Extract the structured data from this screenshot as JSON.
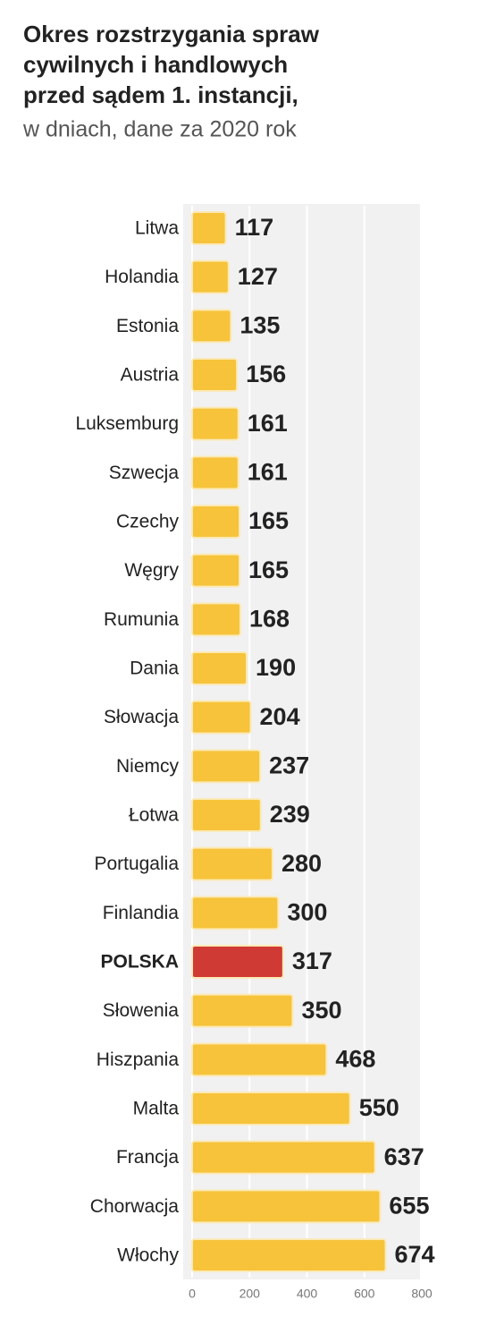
{
  "chart_data": {
    "type": "hbar",
    "title": [
      "Okres rozstrzygania spraw",
      "cywilnych i handlowych",
      "przed sądem 1. instancji,"
    ],
    "subtitle": "w dniach, dane za 2020 rok",
    "categories": [
      "Litwa",
      "Holandia",
      "Estonia",
      "Austria",
      "Luksemburg",
      "Szwecja",
      "Czechy",
      "Węgry",
      "Rumunia",
      "Dania",
      "Słowacja",
      "Niemcy",
      "Łotwa",
      "Portugalia",
      "Finlandia",
      "POLSKA",
      "Słowenia",
      "Hiszpania",
      "Malta",
      "Francja",
      "Chorwacja",
      "Włochy"
    ],
    "values": [
      117,
      127,
      135,
      156,
      161,
      161,
      165,
      165,
      168,
      190,
      204,
      237,
      239,
      280,
      300,
      317,
      350,
      468,
      550,
      637,
      655,
      674
    ],
    "colors": [
      "#f6c33a",
      "#f6c33a",
      "#f6c33a",
      "#f6c33a",
      "#f6c33a",
      "#f6c33a",
      "#f6c33a",
      "#f6c33a",
      "#f6c33a",
      "#f6c33a",
      "#f6c33a",
      "#f6c33a",
      "#f6c33a",
      "#f6c33a",
      "#f6c33a",
      "#d03a35",
      "#f6c33a",
      "#f6c33a",
      "#f6c33a",
      "#f6c33a",
      "#f6c33a",
      "#f6c33a"
    ],
    "xlim": [
      0,
      800
    ],
    "xticks": [
      0,
      200,
      400,
      600,
      800
    ],
    "grid": true
  }
}
